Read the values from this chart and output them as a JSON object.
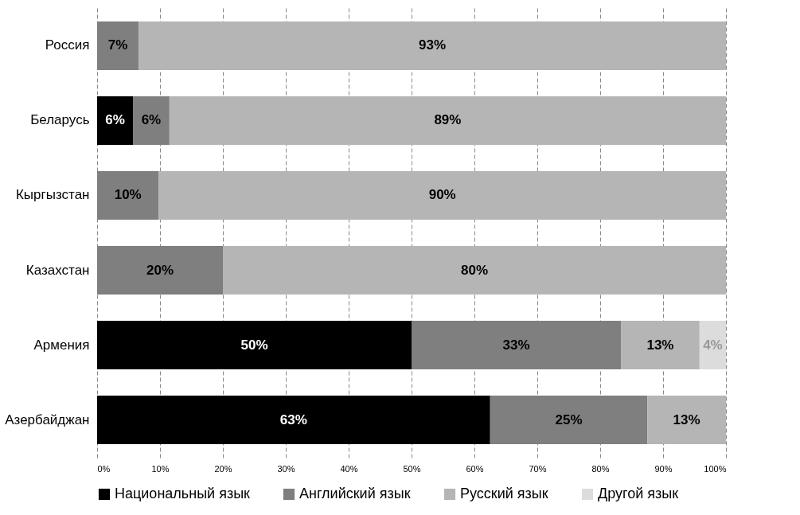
{
  "chart_data": {
    "type": "bar",
    "orientation": "horizontal",
    "stacked": true,
    "categories": [
      "Россия",
      "Беларусь",
      "Кыргызстан",
      "Казахстан",
      "Армения",
      "Азербайджан"
    ],
    "series": [
      {
        "name": "Национальный язык",
        "color": "#000000",
        "values": [
          null,
          5.7,
          null,
          null,
          50,
          62.5
        ],
        "value_labels": [
          null,
          "6%",
          null,
          null,
          "50%",
          "63%"
        ]
      },
      {
        "name": "Английский язык",
        "color": "#7f7f7f",
        "values": [
          6.6,
          5.8,
          9.8,
          20,
          33.3,
          25
        ],
        "value_labels": [
          "7%",
          "6%",
          "10%",
          "20%",
          "33%",
          "25%"
        ]
      },
      {
        "name": "Русский язык",
        "color": "#b5b5b5",
        "values": [
          93.4,
          88.5,
          90.2,
          80,
          12.5,
          12.5
        ],
        "value_labels": [
          "93%",
          "89%",
          "90%",
          "80%",
          "13%",
          "13%"
        ]
      },
      {
        "name": "Другой язык",
        "color": "#dcdcdc",
        "values": [
          null,
          null,
          null,
          null,
          4.2,
          null
        ],
        "value_labels": [
          null,
          null,
          null,
          null,
          "4%",
          null
        ]
      }
    ],
    "xlim": [
      0,
      100
    ],
    "xticks": [
      {
        "value": 0,
        "label": "0%"
      },
      {
        "value": 10,
        "label": "10%"
      },
      {
        "value": 20,
        "label": "20%"
      },
      {
        "value": 30,
        "label": "30%"
      },
      {
        "value": 40,
        "label": "40%"
      },
      {
        "value": 50,
        "label": "50%"
      },
      {
        "value": 60,
        "label": "60%"
      },
      {
        "value": 70,
        "label": "70%"
      },
      {
        "value": 80,
        "label": "80%"
      },
      {
        "value": 90,
        "label": "90%"
      },
      {
        "value": 100,
        "label": "100%"
      }
    ],
    "grid": "x",
    "legend": "bottom"
  }
}
